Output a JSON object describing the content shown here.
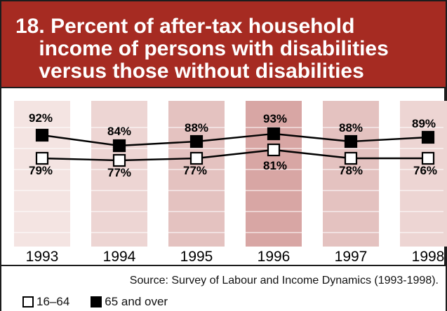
{
  "title": {
    "number": "18.",
    "line1": "Percent of after-tax household",
    "line2": "income of persons with disabilities",
    "line3": "versus those without disabilities"
  },
  "source": "Source:  Survey of Labour and Income Dynamics (1993-1998).",
  "legend": {
    "open_label": "16–64",
    "filled_label": "65 and over"
  },
  "colors": {
    "title_bg": "#a62b22",
    "year_bands": [
      "#f4e4e2",
      "#edd5d3",
      "#e4c2c0",
      "#d8a6a4",
      "#e4c2c0",
      "#edd5d3"
    ]
  },
  "chart_data": {
    "type": "line",
    "categories": [
      "1993",
      "1994",
      "1995",
      "1996",
      "1997",
      "1998"
    ],
    "series": [
      {
        "name": "65 and over",
        "values": [
          92,
          84,
          88,
          93,
          88,
          89
        ],
        "labels": [
          "92%",
          "84%",
          "88%",
          "93%",
          "88%",
          "89%"
        ],
        "marker": "filled-square"
      },
      {
        "name": "16–64",
        "values": [
          79,
          77,
          77,
          81,
          78,
          76
        ],
        "labels": [
          "79%",
          "77%",
          "77%",
          "81%",
          "78%",
          "76%"
        ],
        "marker": "open-square"
      }
    ],
    "grid": true
  }
}
